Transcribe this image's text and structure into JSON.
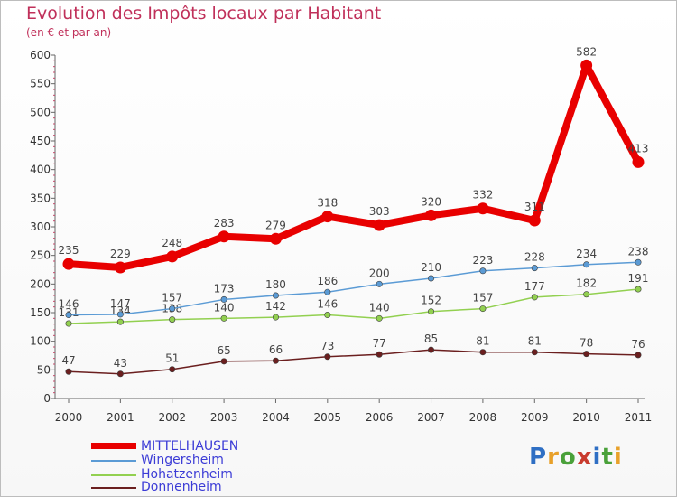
{
  "header": {
    "title": "Evolution des Impôts locaux par Habitant",
    "subtitle": "(en € et par an)"
  },
  "logo": {
    "text": "Proxiti"
  },
  "chart_data": {
    "type": "line",
    "title": "Evolution des Impôts locaux par Habitant",
    "subtitle": "(en € et par an)",
    "xlabel": "",
    "ylabel": "",
    "x": [
      "2000",
      "2001",
      "2002",
      "2003",
      "2004",
      "2005",
      "2006",
      "2007",
      "2008",
      "2009",
      "2010",
      "2011"
    ],
    "ylim": [
      0,
      600
    ],
    "yticks": [
      0,
      50,
      100,
      150,
      200,
      250,
      300,
      350,
      400,
      450,
      500,
      550,
      600
    ],
    "grid": false,
    "legend_position": "bottom-left",
    "series": [
      {
        "name": "MITTELHAUSEN",
        "color": "#e80000",
        "values": [
          235,
          229,
          248,
          283,
          279,
          318,
          303,
          320,
          332,
          311,
          582,
          413
        ]
      },
      {
        "name": "Wingersheim",
        "color": "#5b9bd5",
        "values": [
          146,
          147,
          157,
          173,
          180,
          186,
          200,
          210,
          223,
          228,
          234,
          238
        ]
      },
      {
        "name": "Hohatzenheim",
        "color": "#92d050",
        "values": [
          131,
          134,
          138,
          140,
          142,
          146,
          140,
          152,
          157,
          177,
          182,
          191
        ]
      },
      {
        "name": "Donnenheim",
        "color": "#6b1f1f",
        "values": [
          47,
          43,
          51,
          65,
          66,
          73,
          77,
          85,
          81,
          81,
          78,
          76
        ]
      }
    ]
  }
}
